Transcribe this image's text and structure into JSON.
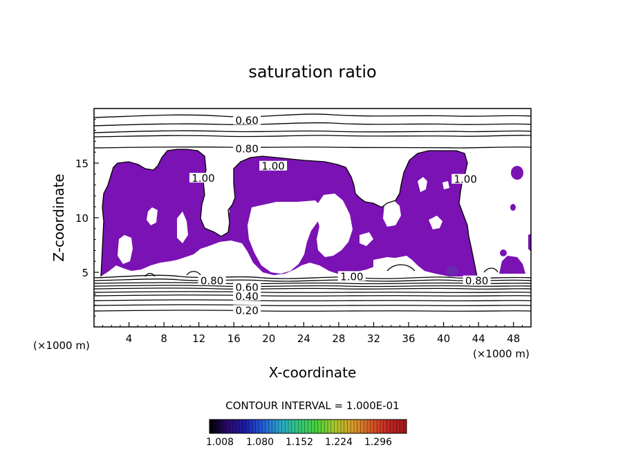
{
  "chart_data": {
    "type": "contour",
    "title": "saturation ratio",
    "xlabel": "X-coordinate",
    "ylabel": "Z-coordinate",
    "x_unit": "(×1000 m)",
    "x_ticks": [
      4,
      8,
      12,
      16,
      20,
      24,
      28,
      32,
      36,
      40,
      44,
      48
    ],
    "y_ticks": [
      5,
      10,
      15
    ],
    "xlim": [
      0,
      50
    ],
    "ylim": [
      0,
      20
    ],
    "grid": false,
    "contour_interval_text": "CONTOUR INTERVAL = 1.000E-01",
    "contour_labels": [
      {
        "text": "0.60",
        "x": 17.5,
        "z": 18.9
      },
      {
        "text": "0.80",
        "x": 17.5,
        "z": 16.3
      },
      {
        "text": "1.00",
        "x": 20.5,
        "z": 14.7
      },
      {
        "text": "1.00",
        "x": 12.5,
        "z": 13.6
      },
      {
        "text": "1.00",
        "x": 42.5,
        "z": 13.5
      },
      {
        "text": "0.80",
        "x": 13.5,
        "z": 4.2
      },
      {
        "text": "0.80",
        "x": 43.8,
        "z": 4.2
      },
      {
        "text": "1.00",
        "x": 29.5,
        "z": 4.6
      },
      {
        "text": "0.60",
        "x": 17.5,
        "z": 3.6
      },
      {
        "text": "0.40",
        "x": 17.5,
        "z": 2.8
      },
      {
        "text": "0.20",
        "x": 17.5,
        "z": 1.5
      }
    ],
    "fill": {
      "threshold": 1.0,
      "color": "#7a12b4",
      "description_key": "supersaturated region"
    },
    "colorbar": {
      "tick_labels": [
        "1.008",
        "1.080",
        "1.152",
        "1.224",
        "1.296"
      ],
      "colors": [
        "#000000",
        "#2a0a6a",
        "#1c1ca8",
        "#2260d8",
        "#2aa8c8",
        "#30c878",
        "#4ad03a",
        "#a8c82a",
        "#d89a28",
        "#d45a24",
        "#c42424",
        "#a01818"
      ]
    },
    "contour_lines_below_cloud_base": [
      0.2,
      0.3,
      0.4,
      0.5,
      0.6,
      0.7,
      0.8
    ],
    "contour_lines_above_cloud_top": [
      0.6,
      0.7,
      0.8,
      0.9
    ]
  }
}
